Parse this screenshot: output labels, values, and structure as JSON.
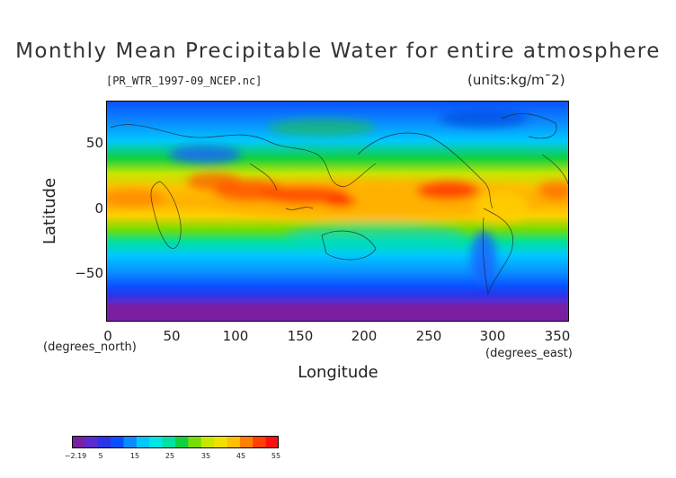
{
  "chart_data": {
    "type": "heatmap",
    "title": "Monthly Mean Precipitable Water for entire atmosphere",
    "subtitle_left": "[PR_WTR_1997-09_NCEP.nc]",
    "subtitle_right": "(units:kg/m¯2)",
    "xlabel": "Longitude",
    "ylabel": "Latitude",
    "x_unit": "(degrees_east)",
    "y_unit": "(degrees_north)",
    "xlim": [
      0,
      357.5
    ],
    "ylim": [
      -90,
      90
    ],
    "x_ticks": [
      "0",
      "50",
      "100",
      "150",
      "200",
      "250",
      "300",
      "350"
    ],
    "y_ticks": [
      "50",
      "0",
      "−50"
    ],
    "colorbar": {
      "range": [
        -2.19,
        55
      ],
      "tick_labels": [
        "−2.19",
        "5",
        "15",
        "25",
        "35",
        "45",
        "55"
      ],
      "colors": [
        "#7a1fa2",
        "#5a2bd0",
        "#2a35e8",
        "#0a50ff",
        "#0a8cff",
        "#00c8ff",
        "#00e6e6",
        "#00e0a0",
        "#10d040",
        "#7adc00",
        "#c8e600",
        "#f0e000",
        "#ffc000",
        "#ff8000",
        "#ff4000",
        "#ff1010"
      ]
    }
  }
}
